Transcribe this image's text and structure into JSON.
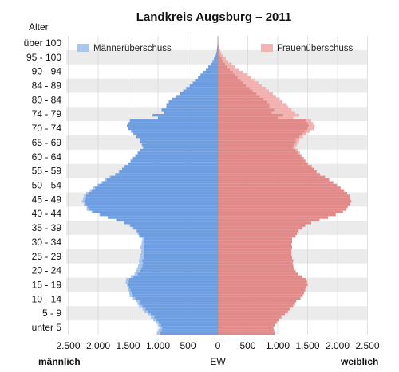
{
  "chart_data": {
    "type": "bar",
    "subtype": "population-pyramid",
    "title": "Landkreis Augsburg – 2011",
    "ylabel": "Alter",
    "xlabel": "EW",
    "left_label": "männlich",
    "right_label": "weiblich",
    "xlim": [
      -2500,
      2500
    ],
    "x_ticks": [
      -2500,
      -2000,
      -1500,
      -1000,
      -500,
      0,
      500,
      1000,
      1500,
      2000,
      2500
    ],
    "x_tick_labels": [
      "2.500",
      "2.000",
      "1.500",
      "1.000",
      "500",
      "0",
      "500",
      "1.000",
      "1.500",
      "2.000",
      "2.500"
    ],
    "age_labels": [
      "unter 5",
      "5 - 9",
      "10 - 14",
      "15 - 19",
      "20 - 24",
      "25 - 29",
      "30 - 34",
      "35 - 39",
      "40 - 44",
      "45 - 49",
      "50 - 54",
      "55 - 59",
      "60 - 64",
      "65 - 69",
      "70 - 74",
      "74 - 79",
      "80 - 84",
      "84 - 89",
      "90 - 94",
      "95 - 100",
      "über 100"
    ],
    "grid": true,
    "legend": {
      "position": "top",
      "items": [
        {
          "name": "Männerüberschuss",
          "color": "#a9c7ee"
        },
        {
          "name": "Frauenüberschuss",
          "color": "#f2b3b3"
        }
      ]
    },
    "colors": {
      "male": "#6e9ee2",
      "female": "#e28a8a",
      "male_surplus": "#a9c7ee",
      "female_surplus": "#f2b3b3",
      "band": "#ebebeb"
    },
    "male": [
      1020,
      990,
      980,
      1000,
      1030,
      1080,
      1120,
      1170,
      1230,
      1260,
      1320,
      1340,
      1360,
      1420,
      1470,
      1480,
      1490,
      1500,
      1520,
      1540,
      1530,
      1450,
      1390,
      1360,
      1350,
      1330,
      1310,
      1320,
      1300,
      1290,
      1280,
      1280,
      1290,
      1270,
      1270,
      1260,
      1320,
      1340,
      1360,
      1420,
      1470,
      1570,
      1700,
      1840,
      1980,
      2110,
      2190,
      2190,
      2240,
      2270,
      2250,
      2240,
      2200,
      2140,
      2080,
      2020,
      1960,
      1880,
      1810,
      1720,
      1650,
      1600,
      1560,
      1500,
      1460,
      1420,
      1380,
      1340,
      1300,
      1250,
      1270,
      1300,
      1300,
      1360,
      1410,
      1450,
      1500,
      1520,
      1500,
      1470,
      1000,
      1090,
      900,
      940,
      860,
      860,
      820,
      760,
      700,
      640,
      580,
      530,
      470,
      420,
      380,
      330,
      290,
      250,
      200,
      160,
      120,
      90,
      65,
      40,
      28,
      18,
      12,
      7,
      4,
      2,
      1
    ],
    "female": [
      960,
      940,
      930,
      950,
      990,
      1020,
      1060,
      1120,
      1170,
      1210,
      1260,
      1290,
      1310,
      1380,
      1420,
      1440,
      1460,
      1480,
      1500,
      1490,
      1480,
      1410,
      1340,
      1300,
      1280,
      1260,
      1250,
      1260,
      1240,
      1230,
      1230,
      1230,
      1240,
      1230,
      1240,
      1240,
      1300,
      1320,
      1350,
      1410,
      1460,
      1560,
      1700,
      1840,
      1970,
      2090,
      2150,
      2170,
      2210,
      2230,
      2210,
      2200,
      2160,
      2110,
      2050,
      1990,
      1930,
      1860,
      1790,
      1710,
      1650,
      1600,
      1570,
      1510,
      1470,
      1440,
      1400,
      1370,
      1330,
      1290,
      1320,
      1350,
      1360,
      1420,
      1480,
      1530,
      1600,
      1620,
      1590,
      1560,
      1260,
      1360,
      1290,
      1230,
      1170,
      1150,
      1080,
      1030,
      970,
      920,
      850,
      800,
      730,
      680,
      620,
      560,
      490,
      420,
      350,
      290,
      230,
      170,
      130,
      90,
      60,
      40,
      25,
      15,
      8,
      4,
      2
    ]
  }
}
